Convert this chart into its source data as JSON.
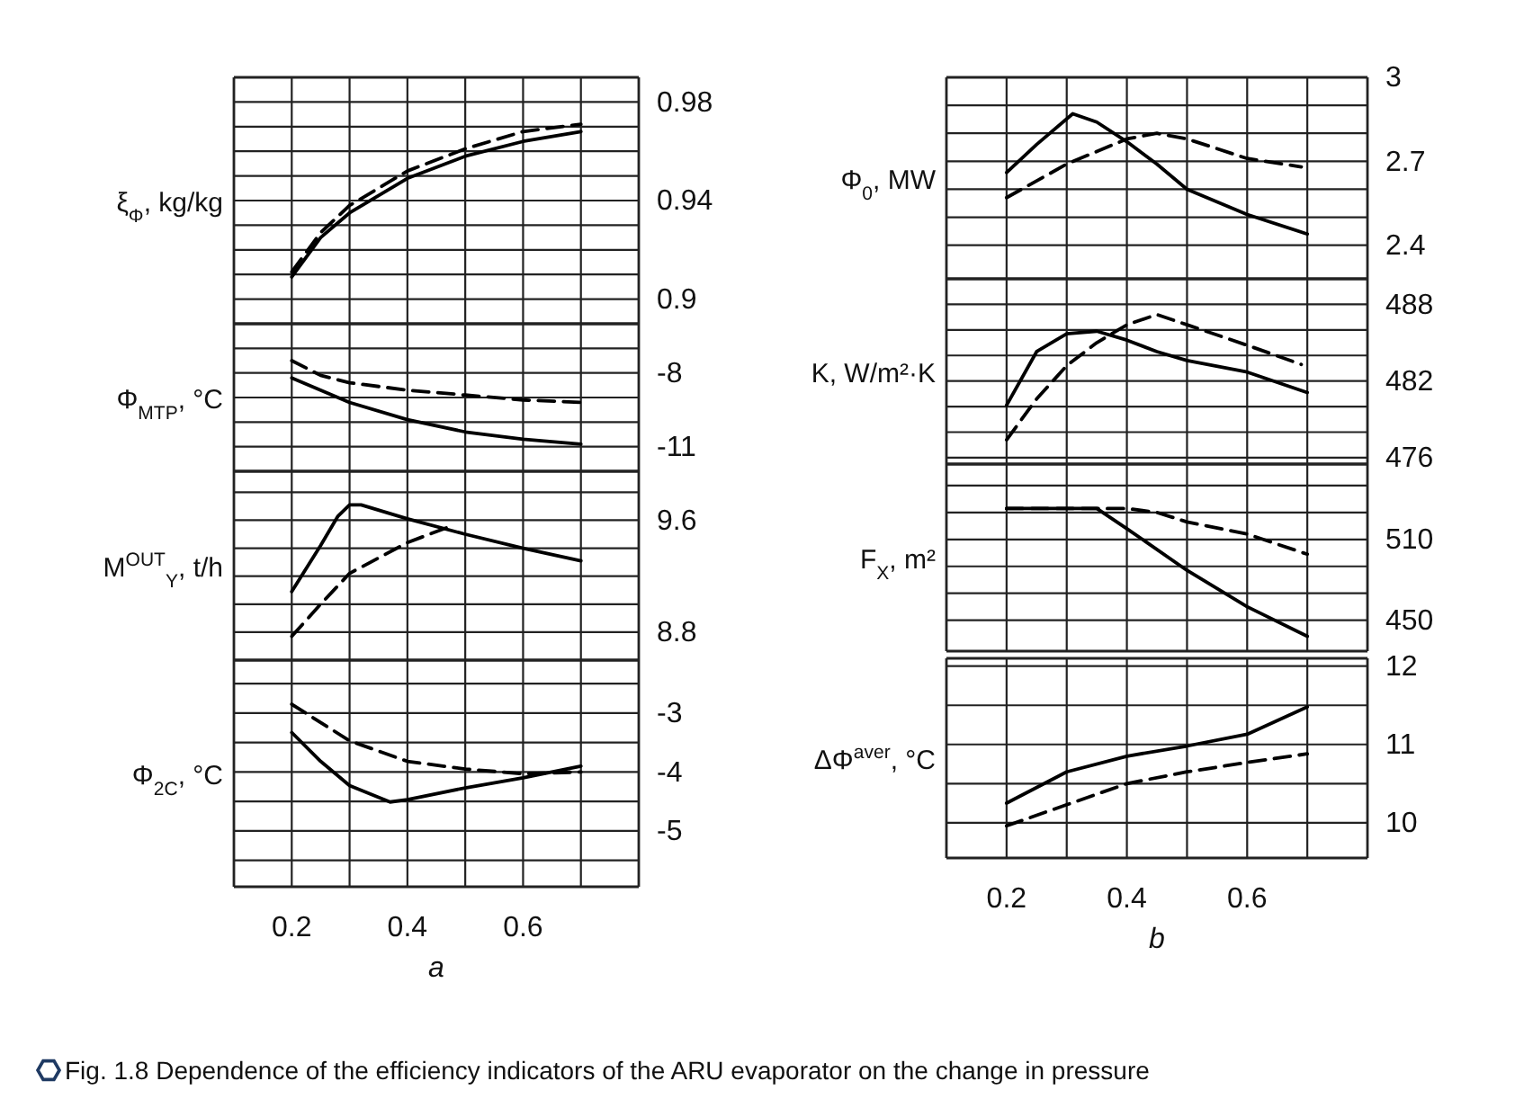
{
  "chart_data": [
    {
      "type": "line",
      "ylabel": "ξ$_{Φ}$, kg/kg",
      "xlim": [
        0.1,
        0.8
      ],
      "xticks": [
        0.2,
        {
          "value": 0.3,
          "label": null
        },
        0.4,
        {
          "value": 0.5,
          "label": null
        },
        0.6,
        {
          "value": 0.7,
          "label": null
        }
      ],
      "ylim": [
        0.89,
        0.99
      ],
      "yticks": [
        0.98,
        {
          "value": 0.97,
          "label": null
        },
        {
          "value": 0.96,
          "label": null
        },
        {
          "value": 0.95,
          "label": null
        },
        0.94,
        {
          "value": 0.93,
          "label": null
        },
        {
          "value": 0.92,
          "label": null
        },
        {
          "value": 0.91,
          "label": null
        },
        0.9
      ],
      "grid": true,
      "tick_labels": "y",
      "annotations": [
        "Fig. 1.8 Dependence of the efficiency indicators of the ARU evaporator on the change in pressure"
      ],
      "series": [
        {
          "color": "#000000",
          "line_style": "solid",
          "x": [
            0.2,
            0.25,
            0.3,
            0.4,
            0.5,
            0.6,
            0.7
          ],
          "values": [
            0.909,
            0.925,
            0.935,
            0.949,
            0.958,
            0.964,
            0.968
          ]
        },
        {
          "color": "#000000",
          "line_style": "dashed",
          "x": [
            0.2,
            0.25,
            0.3,
            0.4,
            0.5,
            0.6,
            0.7
          ],
          "values": [
            0.911,
            0.927,
            0.938,
            0.952,
            0.961,
            0.968,
            0.971
          ]
        }
      ]
    },
    {
      "type": "line",
      "ylabel": "Φ$_{MTP}$, °C",
      "xlim": [
        0.1,
        0.8
      ],
      "xticks": [
        0.2,
        {
          "value": 0.3,
          "label": null
        },
        0.4,
        {
          "value": 0.5,
          "label": null
        },
        0.6,
        {
          "value": 0.7,
          "label": null
        }
      ],
      "ylim": [
        -12,
        -6
      ],
      "yticks": [
        {
          "value": -7,
          "label": null
        },
        -8,
        {
          "value": -9,
          "label": null
        },
        {
          "value": -10,
          "label": null
        },
        -11
      ],
      "grid": true,
      "tick_labels": "y",
      "series": [
        {
          "color": "#000000",
          "line_style": "solid",
          "x": [
            0.2,
            0.3,
            0.4,
            0.5,
            0.6,
            0.7
          ],
          "values": [
            -8.2,
            -9.2,
            -9.9,
            -10.4,
            -10.7,
            -10.9
          ]
        },
        {
          "color": "#000000",
          "line_style": "dashed",
          "x": [
            0.2,
            0.25,
            0.3,
            0.4,
            0.5,
            0.6,
            0.7
          ],
          "values": [
            -7.5,
            -8.1,
            -8.4,
            -8.7,
            -8.9,
            -9.1,
            -9.2
          ]
        }
      ]
    },
    {
      "type": "line",
      "ylabel": "M$^{OUT}$$_{Y}$, t/h",
      "xlim": [
        0.1,
        0.8
      ],
      "xticks": [
        0.2,
        {
          "value": 0.3,
          "label": null
        },
        0.4,
        {
          "value": 0.5,
          "label": null
        },
        0.6,
        {
          "value": 0.7,
          "label": null
        }
      ],
      "ylim": [
        8.6,
        9.95
      ],
      "yticks": [
        {
          "value": 9.8,
          "label": null
        },
        9.6,
        {
          "value": 9.4,
          "label": null
        },
        {
          "value": 9.2,
          "label": null
        },
        {
          "value": 9.0,
          "label": null
        },
        8.8
      ],
      "grid": true,
      "tick_labels": "y",
      "series": [
        {
          "color": "#000000",
          "line_style": "solid",
          "x": [
            0.2,
            0.25,
            0.28,
            0.3,
            0.32,
            0.4,
            0.5,
            0.6,
            0.7
          ],
          "values": [
            9.09,
            9.42,
            9.63,
            9.71,
            9.71,
            9.61,
            9.5,
            9.4,
            9.31
          ]
        },
        {
          "color": "#000000",
          "line_style": "dashed",
          "x": [
            0.2,
            0.25,
            0.3,
            0.4,
            0.47
          ],
          "values": [
            8.77,
            9.0,
            9.22,
            9.44,
            9.55
          ]
        }
      ]
    },
    {
      "type": "line",
      "ylabel": "Φ$_{2C}$, °C",
      "xlabel": "a",
      "xlim": [
        0.1,
        0.8
      ],
      "xticks": [
        0.2,
        {
          "value": 0.3,
          "label": null
        },
        0.4,
        {
          "value": 0.5,
          "label": null
        },
        0.6,
        {
          "value": 0.7,
          "label": null
        }
      ],
      "ylim": [
        -5.95,
        -2.1
      ],
      "yticks": [
        {
          "value": -2.5,
          "label": null
        },
        -3,
        {
          "value": -3.5,
          "label": null
        },
        -4,
        {
          "value": -4.5,
          "label": null
        },
        -5,
        {
          "value": -5.5,
          "label": null
        }
      ],
      "grid": true,
      "series": [
        {
          "color": "#000000",
          "line_style": "solid",
          "x": [
            0.2,
            0.25,
            0.3,
            0.37,
            0.4,
            0.5,
            0.6,
            0.7
          ],
          "values": [
            -3.33,
            -3.82,
            -4.23,
            -4.51,
            -4.47,
            -4.27,
            -4.1,
            -3.9
          ]
        },
        {
          "color": "#000000",
          "line_style": "dashed",
          "x": [
            0.2,
            0.3,
            0.4,
            0.5,
            0.6,
            0.7
          ],
          "values": [
            -2.85,
            -3.47,
            -3.82,
            -3.95,
            -4.03,
            -4.0
          ]
        }
      ]
    },
    {
      "type": "line",
      "ylabel": "Φ$_{0}$, MW",
      "xlim": [
        0.1,
        0.8
      ],
      "xticks": [
        0.2,
        {
          "value": 0.3,
          "label": null
        },
        0.4,
        {
          "value": 0.5,
          "label": null
        },
        0.6,
        {
          "value": 0.7,
          "label": null
        }
      ],
      "ylim": [
        2.28,
        3
      ],
      "yticks": [
        3,
        {
          "value": 2.9,
          "label": null
        },
        {
          "value": 2.8,
          "label": null
        },
        2.7,
        {
          "value": 2.6,
          "label": null
        },
        {
          "value": 2.5,
          "label": null
        },
        2.4
      ],
      "grid": true,
      "tick_labels": "y",
      "series": [
        {
          "color": "#000000",
          "line_style": "solid",
          "x": [
            0.2,
            0.25,
            0.31,
            0.35,
            0.4,
            0.45,
            0.5,
            0.6,
            0.7
          ],
          "values": [
            2.66,
            2.76,
            2.87,
            2.84,
            2.77,
            2.69,
            2.6,
            2.51,
            2.44
          ]
        },
        {
          "color": "#000000",
          "line_style": "dashed",
          "x": [
            0.2,
            0.3,
            0.4,
            0.45,
            0.5,
            0.6,
            0.69
          ],
          "values": [
            2.57,
            2.69,
            2.78,
            2.8,
            2.78,
            2.71,
            2.68
          ]
        }
      ]
    },
    {
      "type": "line",
      "ylabel": "K, W/m²·K",
      "xlim": [
        0.1,
        0.8
      ],
      "xticks": [
        0.2,
        {
          "value": 0.3,
          "label": null
        },
        0.4,
        {
          "value": 0.5,
          "label": null
        },
        0.6,
        {
          "value": 0.7,
          "label": null
        }
      ],
      "ylim": [
        475.5,
        490
      ],
      "yticks": [
        488,
        {
          "value": 486,
          "label": null
        },
        {
          "value": 484,
          "label": null
        },
        482,
        {
          "value": 480,
          "label": null
        },
        {
          "value": 478,
          "label": null
        },
        476
      ],
      "grid": true,
      "tick_labels": "y",
      "series": [
        {
          "color": "#000000",
          "line_style": "solid",
          "x": [
            0.2,
            0.25,
            0.3,
            0.35,
            0.4,
            0.45,
            0.5,
            0.6,
            0.7
          ],
          "values": [
            480.1,
            484.3,
            485.7,
            485.9,
            485.2,
            484.3,
            483.6,
            482.7,
            481.1
          ]
        },
        {
          "color": "#000000",
          "line_style": "dashed",
          "x": [
            0.2,
            0.25,
            0.3,
            0.35,
            0.4,
            0.45,
            0.5,
            0.6,
            0.69
          ],
          "values": [
            477.4,
            480.6,
            483.2,
            485,
            486.4,
            487.2,
            486.4,
            484.8,
            483.3
          ]
        }
      ]
    },
    {
      "type": "line",
      "ylabel": "F$_{X}$, m²",
      "xlim": [
        0.1,
        0.8
      ],
      "xticks": [
        0.2,
        {
          "value": 0.3,
          "label": null
        },
        0.4,
        {
          "value": 0.5,
          "label": null
        },
        0.6,
        {
          "value": 0.7,
          "label": null
        }
      ],
      "ylim": [
        427,
        566
      ],
      "yticks": [
        {
          "value": 550,
          "label": null
        },
        {
          "value": 530,
          "label": null
        },
        510,
        {
          "value": 490,
          "label": null
        },
        {
          "value": 470,
          "label": null
        },
        450
      ],
      "grid": true,
      "tick_labels": "y",
      "series": [
        {
          "color": "#000000",
          "line_style": "solid",
          "x": [
            0.2,
            0.35,
            0.4,
            0.5,
            0.6,
            0.7
          ],
          "values": [
            533,
            533,
            518,
            487,
            460,
            438
          ]
        },
        {
          "color": "#000000",
          "line_style": "dashed",
          "x": [
            0.2,
            0.4,
            0.45,
            0.5,
            0.6,
            0.7
          ],
          "values": [
            533,
            533,
            530,
            523,
            514,
            499
          ]
        }
      ]
    },
    {
      "type": "line",
      "ylabel": "ΔΦ$^{aver}$, °C",
      "xlabel": "b",
      "xlim": [
        0.1,
        0.8
      ],
      "xticks": [
        0.2,
        {
          "value": 0.3,
          "label": null
        },
        0.4,
        {
          "value": 0.5,
          "label": null
        },
        0.6,
        {
          "value": 0.7,
          "label": null
        }
      ],
      "ylim": [
        9.55,
        12.1
      ],
      "yticks": [
        12,
        {
          "value": 11.5,
          "label": null
        },
        11,
        {
          "value": 10.5,
          "label": null
        },
        10
      ],
      "grid": true,
      "series": [
        {
          "color": "#000000",
          "line_style": "solid",
          "x": [
            0.2,
            0.3,
            0.4,
            0.5,
            0.6,
            0.7
          ],
          "values": [
            10.25,
            10.65,
            10.85,
            10.98,
            11.13,
            11.48
          ]
        },
        {
          "color": "#000000",
          "line_style": "dashed",
          "x": [
            0.2,
            0.3,
            0.4,
            0.5,
            0.6,
            0.7
          ],
          "values": [
            9.96,
            10.23,
            10.5,
            10.65,
            10.77,
            10.88
          ]
        }
      ]
    }
  ]
}
